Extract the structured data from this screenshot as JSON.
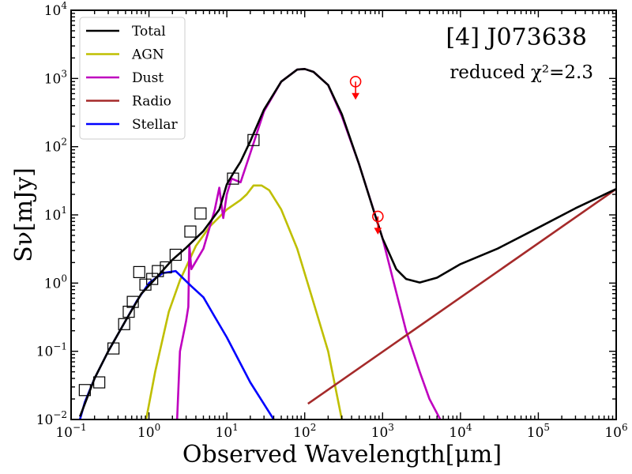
{
  "chart_data": {
    "type": "line",
    "title": "[4] J073638",
    "subtitle": "reduced χ²=2.3",
    "xlabel": "Observed Wavelength[μm]",
    "ylabel": "Sν[mJy]",
    "xscale": "log",
    "yscale": "log",
    "xlim": [
      0.1,
      1000000
    ],
    "ylim": [
      0.01,
      10000
    ],
    "x_ticks": [
      {
        "value": 0.1,
        "mantissa": "10",
        "exp": "−1"
      },
      {
        "value": 1,
        "mantissa": "10",
        "exp": "0"
      },
      {
        "value": 10,
        "mantissa": "10",
        "exp": "1"
      },
      {
        "value": 100,
        "mantissa": "10",
        "exp": "2"
      },
      {
        "value": 1000,
        "mantissa": "10",
        "exp": "3"
      },
      {
        "value": 10000,
        "mantissa": "10",
        "exp": "4"
      },
      {
        "value": 100000,
        "mantissa": "10",
        "exp": "5"
      },
      {
        "value": 1000000,
        "mantissa": "10",
        "exp": "6"
      }
    ],
    "y_ticks": [
      {
        "value": 0.01,
        "mantissa": "10",
        "exp": "−2"
      },
      {
        "value": 0.1,
        "mantissa": "10",
        "exp": "−1"
      },
      {
        "value": 1,
        "mantissa": "10",
        "exp": "0"
      },
      {
        "value": 10,
        "mantissa": "10",
        "exp": "1"
      },
      {
        "value": 100,
        "mantissa": "10",
        "exp": "2"
      },
      {
        "value": 1000,
        "mantissa": "10",
        "exp": "3"
      },
      {
        "value": 10000,
        "mantissa": "10",
        "exp": "4"
      }
    ],
    "legend_position": "top-left",
    "series": [
      {
        "name": "Total",
        "color": "#000000",
        "x": [
          0.13,
          0.2,
          0.3,
          0.5,
          0.8,
          1.2,
          2,
          3,
          5,
          8,
          10,
          12,
          15,
          20,
          30,
          50,
          80,
          100,
          130,
          200,
          300,
          500,
          800,
          1000,
          1500,
          2000,
          3000,
          5000,
          10000,
          30000,
          100000,
          300000,
          1000000
        ],
        "y": [
          0.011,
          0.04,
          0.1,
          0.28,
          0.7,
          1.15,
          2.2,
          3.3,
          5.8,
          12,
          28,
          40,
          60,
          120,
          350,
          900,
          1350,
          1380,
          1250,
          800,
          300,
          55,
          10,
          4.5,
          1.6,
          1.15,
          1.02,
          1.2,
          1.9,
          3.2,
          6.5,
          12.5,
          24
        ]
      },
      {
        "name": "AGN",
        "color": "#bfbf00",
        "x": [
          0.92,
          1.2,
          1.8,
          2.5,
          4,
          6,
          10,
          15,
          18,
          22,
          28,
          35,
          50,
          80,
          120,
          200,
          300
        ],
        "y": [
          0.01,
          0.05,
          0.38,
          1.1,
          3.5,
          6.7,
          12,
          16.5,
          20,
          27,
          27,
          23,
          12,
          3.2,
          0.7,
          0.1,
          0.01
        ]
      },
      {
        "name": "Dust",
        "color": "#bf00bf",
        "x": [
          2.3,
          2.5,
          3,
          3.2,
          3.3,
          3.5,
          5,
          7,
          8,
          9,
          10,
          11.5,
          15,
          20,
          30,
          50,
          80,
          100,
          130,
          200,
          300,
          500,
          1000,
          2000,
          3000,
          4000,
          5500
        ],
        "y": [
          0.01,
          0.1,
          0.28,
          0.45,
          3.6,
          1.6,
          3.2,
          12,
          25,
          9,
          20,
          34,
          30,
          80,
          330,
          900,
          1350,
          1380,
          1250,
          800,
          280,
          55,
          4.5,
          0.2,
          0.05,
          0.02,
          0.01
        ]
      },
      {
        "name": "Radio",
        "color": "#a52a2a",
        "x": [
          110,
          1000000
        ],
        "y": [
          0.017,
          24
        ]
      },
      {
        "name": "Stellar",
        "color": "#0000ff",
        "x": [
          0.13,
          0.15,
          0.2,
          0.3,
          0.5,
          0.7,
          1,
          1.5,
          2.2,
          3.5,
          5,
          7,
          10,
          20,
          40
        ],
        "y": [
          0.01,
          0.018,
          0.04,
          0.1,
          0.28,
          0.55,
          1.0,
          1.4,
          1.5,
          0.9,
          0.62,
          0.32,
          0.16,
          0.035,
          0.01
        ]
      }
    ],
    "observations": [
      {
        "x": 0.15,
        "y": 0.027
      },
      {
        "x": 0.23,
        "y": 0.035
      },
      {
        "x": 0.35,
        "y": 0.11
      },
      {
        "x": 0.48,
        "y": 0.25
      },
      {
        "x": 0.55,
        "y": 0.38
      },
      {
        "x": 0.62,
        "y": 0.53
      },
      {
        "x": 0.75,
        "y": 1.45
      },
      {
        "x": 0.9,
        "y": 0.95
      },
      {
        "x": 1.1,
        "y": 1.15
      },
      {
        "x": 1.3,
        "y": 1.5
      },
      {
        "x": 1.65,
        "y": 1.7
      },
      {
        "x": 2.2,
        "y": 2.6
      },
      {
        "x": 3.4,
        "y": 5.7
      },
      {
        "x": 4.6,
        "y": 10.5
      },
      {
        "x": 12,
        "y": 34
      },
      {
        "x": 22,
        "y": 125
      }
    ],
    "upper_limits": [
      {
        "x": 450,
        "y": 900
      },
      {
        "x": 870,
        "y": 9.5
      }
    ]
  }
}
